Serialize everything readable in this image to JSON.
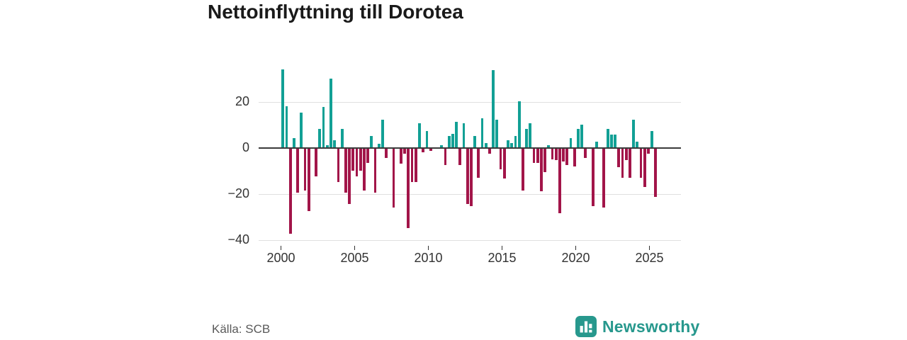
{
  "title": "Nettoinflyttning till Dorotea",
  "source_label": "Källa: SCB",
  "brand": {
    "name": "Newsworthy",
    "logo_icon": "bar-chart-icon"
  },
  "colors": {
    "positive": "#12a095",
    "negative": "#a21549",
    "grid": "#e0e0e0",
    "zero_axis": "#3b3b3b",
    "brand_teal": "#27988d",
    "text": "#333333",
    "title_text": "#1a1a1a",
    "source_text": "#595959"
  },
  "chart_data": {
    "type": "bar",
    "title": "Nettoinflyttning till Dorotea",
    "xlabel": "",
    "ylabel": "",
    "frequency": "quarterly",
    "x_start": "2000-Q1",
    "x_end": "2025-Q2",
    "grid": true,
    "ylim": [
      -42,
      37
    ],
    "y_ticks": [
      20,
      0,
      -20,
      -40
    ],
    "y_tick_labels": [
      "20",
      "0",
      "−20",
      "−40"
    ],
    "x_tick_labels": [
      "2000",
      "2005",
      "2010",
      "2015",
      "2020",
      "2025"
    ],
    "values": [
      34,
      18,
      -37,
      4,
      -19,
      15,
      -18,
      -27,
      0,
      -12,
      8,
      17.5,
      1,
      30,
      3,
      -14.5,
      8,
      -19,
      -24,
      -9.5,
      -12,
      -9.5,
      -18,
      -6,
      5,
      -19,
      1.5,
      12,
      -4,
      0,
      -25.5,
      0,
      -6.5,
      -2,
      -34.5,
      -14.5,
      -14.5,
      10.5,
      -1.5,
      7,
      -1,
      0,
      0,
      1,
      -7,
      5,
      6,
      11,
      -7,
      10.5,
      -24,
      -25,
      5,
      -12.5,
      12.5,
      2,
      -2,
      33.5,
      12,
      -9,
      -13,
      3,
      2,
      5,
      20,
      -18,
      8,
      10.5,
      -6,
      -6,
      -18.5,
      -10,
      1,
      -4.5,
      -5,
      -28,
      -5.5,
      -7,
      4,
      -7.5,
      8,
      10,
      -4,
      0,
      -25,
      2.5,
      0,
      -25.5,
      8,
      5.5,
      5.5,
      -8,
      -12.5,
      -5,
      -12.5,
      12,
      2.5,
      -12.5,
      -16.5,
      -2,
      7,
      -21
    ]
  }
}
